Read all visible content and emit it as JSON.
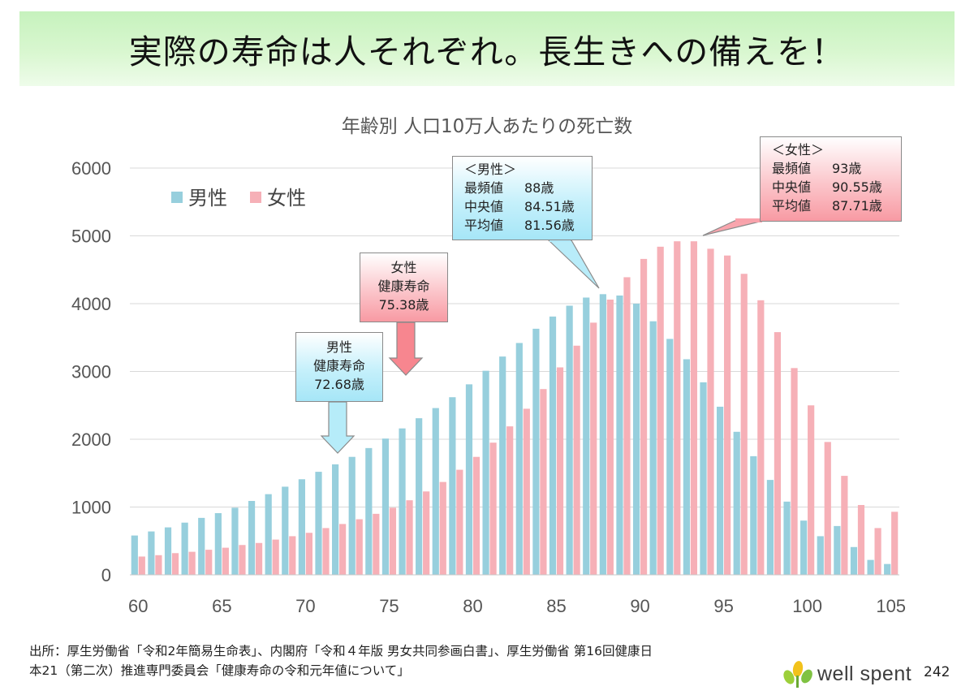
{
  "banner": {
    "title": "実際の寿命は人それぞれ。長生きへの備えを！"
  },
  "colors": {
    "male": "#97cfdd",
    "female": "#f6b0b7",
    "grid": "#d9d9d9"
  },
  "chart_data": {
    "type": "bar",
    "title": "年齢別 人口10万人あたりの死亡数",
    "x": [
      60,
      61,
      62,
      63,
      64,
      65,
      66,
      67,
      68,
      69,
      70,
      71,
      72,
      73,
      74,
      75,
      76,
      77,
      78,
      79,
      80,
      81,
      82,
      83,
      84,
      85,
      86,
      87,
      88,
      89,
      90,
      91,
      92,
      93,
      94,
      95,
      96,
      97,
      98,
      99,
      100,
      101,
      102,
      103,
      104,
      105
    ],
    "x_ticks": [
      60,
      65,
      70,
      75,
      80,
      85,
      90,
      95,
      100,
      105
    ],
    "ylim": [
      0,
      6000
    ],
    "y_ticks": [
      0,
      1000,
      2000,
      3000,
      4000,
      5000,
      6000
    ],
    "grid": true,
    "legend_position": "top-left",
    "series": [
      {
        "name": "男性",
        "values": [
          580,
          640,
          700,
          770,
          840,
          910,
          990,
          1090,
          1190,
          1300,
          1410,
          1520,
          1630,
          1740,
          1870,
          2010,
          2160,
          2310,
          2460,
          2620,
          2810,
          3010,
          3220,
          3420,
          3630,
          3810,
          3970,
          4090,
          4140,
          4120,
          4000,
          3740,
          3480,
          3180,
          2840,
          2480,
          2110,
          1750,
          1400,
          1080,
          800,
          570,
          720,
          410,
          220,
          160
        ]
      },
      {
        "name": "女性",
        "values": [
          270,
          290,
          320,
          340,
          370,
          400,
          440,
          470,
          520,
          570,
          620,
          690,
          750,
          820,
          900,
          990,
          1100,
          1230,
          1370,
          1550,
          1740,
          1950,
          2190,
          2450,
          2740,
          3060,
          3380,
          3720,
          4060,
          4390,
          4660,
          4840,
          4920,
          4920,
          4810,
          4710,
          4440,
          4050,
          3580,
          3050,
          2500,
          1960,
          1460,
          1030,
          690,
          930
        ]
      }
    ]
  },
  "callouts": {
    "male_health": {
      "line1": "男性",
      "line2": "健康寿命",
      "line3": "72.68歳"
    },
    "female_health": {
      "line1": "女性",
      "line2": "健康寿命",
      "line3": "75.38歳"
    },
    "male_stats": {
      "header": "＜男性＞",
      "mode_label": "最頻値",
      "mode_value": "88歳",
      "median_label": "中央値",
      "median_value": "84.51歳",
      "mean_label": "平均値",
      "mean_value": "81.56歳"
    },
    "female_stats": {
      "header": "＜女性＞",
      "mode_label": "最頻値",
      "mode_value": "93歳",
      "median_label": "中央値",
      "median_value": "90.55歳",
      "mean_label": "平均値",
      "mean_value": "87.71歳"
    }
  },
  "source": {
    "line1": "出所：厚生労働省「令和2年簡易生命表」、内閣府「令和４年版 男女共同参画白書」、厚生労働省 第16回健康日",
    "line2": "本21（第二次）推進専門委員会「健康寿命の令和元年値について」"
  },
  "footer": {
    "logo_text": "well spent",
    "page_number": "242"
  }
}
